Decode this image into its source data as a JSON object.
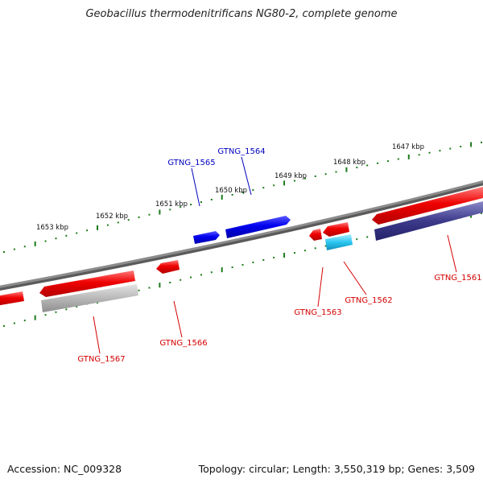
{
  "title": "Geobacillus thermodenitrificans NG80-2, complete genome",
  "footer": {
    "accession": "Accession: NC_009328",
    "summary": "Topology: circular; Length: 3,550,319 bp; Genes: 3,509"
  },
  "scale": {
    "ticks": [
      "1647 kbp",
      "1648 kbp",
      "1649 kbp",
      "1650 kbp",
      "1651 kbp",
      "1652 kbp",
      "1653 kbp"
    ]
  },
  "genes": [
    {
      "label": "GTNG_1561",
      "strand": "reverse",
      "color": "#d40000"
    },
    {
      "label": "GTNG_1562",
      "strand": "reverse",
      "color": "#d40000"
    },
    {
      "label": "GTNG_1563",
      "strand": "reverse",
      "color": "#d40000"
    },
    {
      "label": "GTNG_1564",
      "strand": "forward",
      "color": "#0000c0"
    },
    {
      "label": "GTNG_1565",
      "strand": "forward",
      "color": "#0000c0"
    },
    {
      "label": "GTNG_1566",
      "strand": "reverse",
      "color": "#d40000"
    },
    {
      "label": "GTNG_1567",
      "strand": "reverse",
      "color": "#d40000"
    }
  ],
  "colors": {
    "backbone": "#8c8c8c",
    "forward": "#0000ee",
    "reverse": "#ee0000",
    "ruler": "#1a7a1a",
    "cog_dark": "#3c3a8a",
    "cog_cyan": "#29c6f0",
    "cog_gray": "#b8b8b8"
  }
}
